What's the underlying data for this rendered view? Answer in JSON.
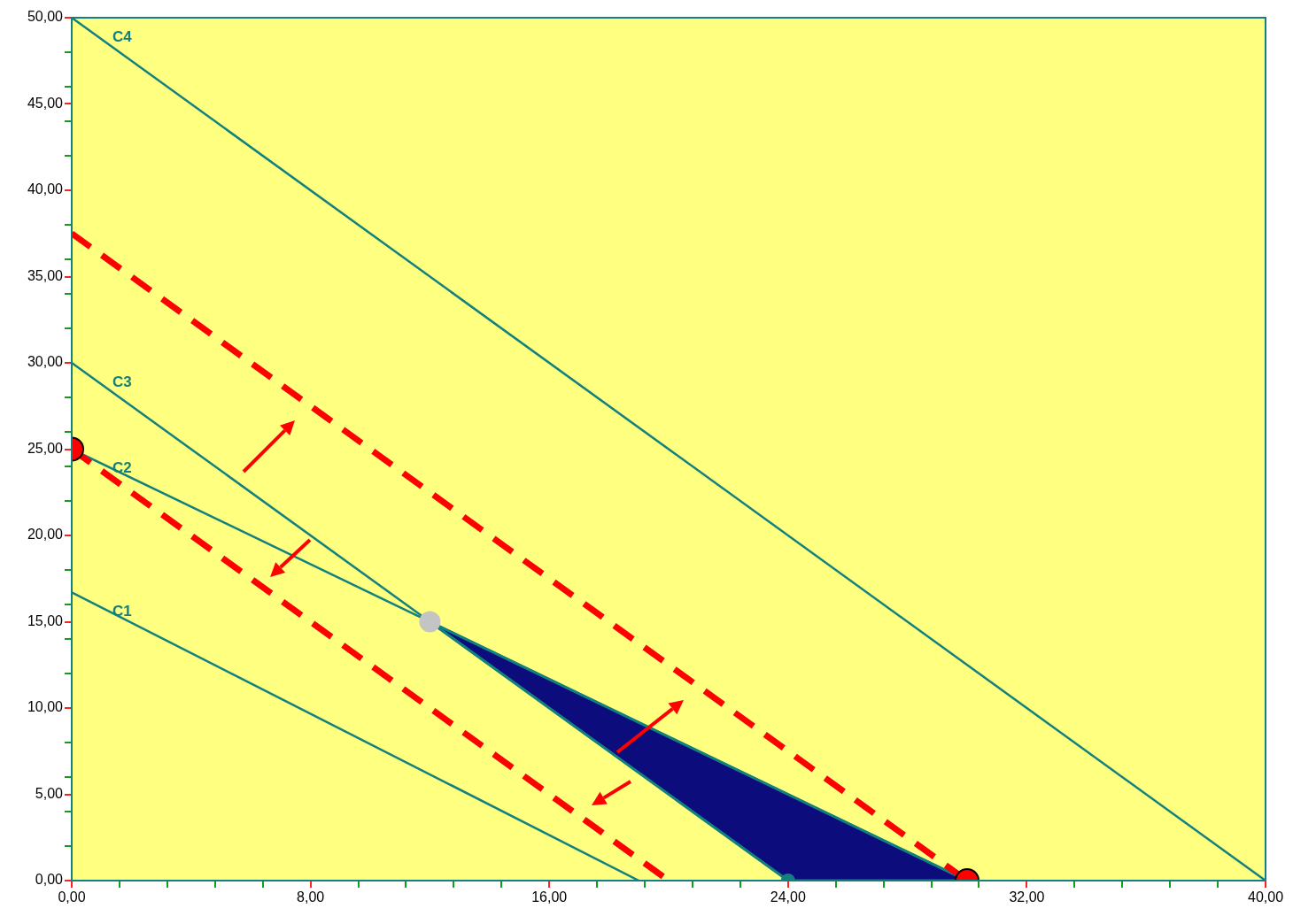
{
  "chart_data": {
    "type": "line",
    "xlim": [
      0,
      40
    ],
    "ylim": [
      0,
      50
    ],
    "xticks": [
      {
        "value": 0,
        "label": "0,00"
      },
      {
        "value": 1.6,
        "label": null
      },
      {
        "value": 3.2,
        "label": null
      },
      {
        "value": 4.8,
        "label": null
      },
      {
        "value": 6.4,
        "label": null
      },
      {
        "value": 8,
        "label": "8,00"
      },
      {
        "value": 9.6,
        "label": null
      },
      {
        "value": 11.2,
        "label": null
      },
      {
        "value": 12.8,
        "label": null
      },
      {
        "value": 14.4,
        "label": null
      },
      {
        "value": 16,
        "label": "16,00"
      },
      {
        "value": 17.6,
        "label": null
      },
      {
        "value": 19.2,
        "label": null
      },
      {
        "value": 20.8,
        "label": null
      },
      {
        "value": 22.4,
        "label": null
      },
      {
        "value": 24,
        "label": "24,00"
      },
      {
        "value": 25.6,
        "label": null
      },
      {
        "value": 27.2,
        "label": null
      },
      {
        "value": 28.8,
        "label": null
      },
      {
        "value": 30.4,
        "label": null
      },
      {
        "value": 32,
        "label": "32,00"
      },
      {
        "value": 33.6,
        "label": null
      },
      {
        "value": 35.2,
        "label": null
      },
      {
        "value": 36.8,
        "label": null
      },
      {
        "value": 38.4,
        "label": null
      },
      {
        "value": 40,
        "label": "40,00"
      }
    ],
    "yticks": [
      {
        "value": 0,
        "label": "0,00"
      },
      {
        "value": 2,
        "label": null
      },
      {
        "value": 4,
        "label": null
      },
      {
        "value": 5,
        "label": "5,00"
      },
      {
        "value": 6,
        "label": null
      },
      {
        "value": 8,
        "label": null
      },
      {
        "value": 10,
        "label": "10,00"
      },
      {
        "value": 12,
        "label": null
      },
      {
        "value": 14,
        "label": null
      },
      {
        "value": 15,
        "label": "15,00"
      },
      {
        "value": 16,
        "label": null
      },
      {
        "value": 18,
        "label": null
      },
      {
        "value": 20,
        "label": "20,00"
      },
      {
        "value": 22,
        "label": null
      },
      {
        "value": 24,
        "label": null
      },
      {
        "value": 25,
        "label": "25,00"
      },
      {
        "value": 26,
        "label": null
      },
      {
        "value": 28,
        "label": null
      },
      {
        "value": 30,
        "label": "30,00"
      },
      {
        "value": 32,
        "label": null
      },
      {
        "value": 34,
        "label": null
      },
      {
        "value": 35,
        "label": "35,00"
      },
      {
        "value": 36,
        "label": null
      },
      {
        "value": 38,
        "label": null
      },
      {
        "value": 40,
        "label": "40,00"
      },
      {
        "value": 42,
        "label": null
      },
      {
        "value": 44,
        "label": null
      },
      {
        "value": 45,
        "label": "45,00"
      },
      {
        "value": 46,
        "label": null
      },
      {
        "value": 48,
        "label": null
      },
      {
        "value": 50,
        "label": "50,00"
      }
    ],
    "grid": false,
    "legend": false,
    "series": [
      {
        "type": "area",
        "color": "#0c0c7c",
        "x": [
          12,
          24,
          30,
          12
        ],
        "values": [
          15,
          0,
          0,
          15
        ]
      },
      {
        "name": "C1",
        "color": "#12807f",
        "marker": "none",
        "line_style": "solid",
        "x": [
          0,
          19
        ],
        "values": [
          16.7,
          0
        ]
      },
      {
        "name": "C2",
        "color": "#12807f",
        "marker": "none",
        "line_style": "solid",
        "x": [
          0,
          30
        ],
        "values": [
          25,
          0
        ]
      },
      {
        "name": "C3",
        "color": "#12807f",
        "marker": "none",
        "line_style": "solid",
        "x": [
          0,
          24
        ],
        "values": [
          30,
          0
        ]
      },
      {
        "name": "C4",
        "color": "#12807f",
        "marker": "none",
        "line_style": "solid",
        "x": [
          0,
          40
        ],
        "values": [
          50,
          0
        ]
      },
      {
        "color": "#ff0000",
        "marker": "none",
        "line_style": "dashed",
        "x": [
          0,
          30
        ],
        "values": [
          37.5,
          0
        ]
      },
      {
        "color": "#ff0000",
        "marker": "none",
        "line_style": "dashed",
        "x": [
          0,
          20
        ],
        "values": [
          25,
          0
        ]
      },
      {
        "type": "scatter",
        "color": "#c4c4c4",
        "marker": "circle",
        "x": [
          12
        ],
        "values": [
          15
        ]
      },
      {
        "type": "scatter",
        "color": "#12807f",
        "marker": "circle",
        "x": [
          24
        ],
        "values": [
          0
        ]
      },
      {
        "type": "scatter",
        "color": "#ff0000",
        "marker": "circle",
        "x": [
          0,
          30
        ],
        "values": [
          25,
          0
        ]
      }
    ]
  }
}
